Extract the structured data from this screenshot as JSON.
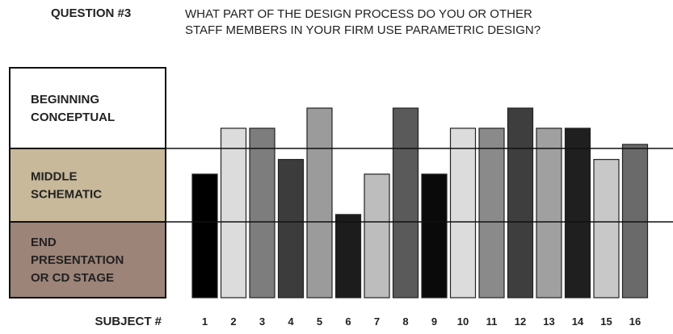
{
  "question": {
    "label": "QUESTION #3",
    "text": "WHAT PART OF THE DESIGN PROCESS DO YOU OR OTHER\nSTAFF MEMBERS IN YOUR FIRM USE PARAMETRIC DESIGN?"
  },
  "chart_data": {
    "type": "bar",
    "xlabel": "SUBJECT #",
    "categories": [
      "1",
      "2",
      "3",
      "4",
      "5",
      "6",
      "7",
      "8",
      "9",
      "10",
      "11",
      "12",
      "13",
      "14",
      "15",
      "16"
    ],
    "values": [
      1.65,
      2.25,
      2.25,
      1.85,
      2.5,
      1.1,
      1.65,
      2.5,
      1.65,
      2.25,
      2.25,
      2.5,
      2.25,
      2.25,
      1.85,
      2.05
    ],
    "bar_colors": [
      "#000000",
      "#dcdcdc",
      "#7d7d7d",
      "#3c3c3c",
      "#9b9b9b",
      "#1c1c1c",
      "#bdbdbd",
      "#5a5a5a",
      "#0a0a0a",
      "#dcdcdc",
      "#8a8a8a",
      "#3e3e3e",
      "#a0a0a0",
      "#1f1f1f",
      "#c8c8c8",
      "#6a6a6a"
    ],
    "ylim": [
      0,
      3
    ],
    "stages": [
      {
        "lines": [
          "END",
          "PRESENTATION",
          "OR CD STAGE"
        ],
        "color": "#9c8478"
      },
      {
        "lines": [
          "MIDDLE",
          "SCHEMATIC"
        ],
        "color": "#c8b99a"
      },
      {
        "lines": [
          "BEGINNING",
          "CONCEPTUAL"
        ],
        "color": "#ffffff"
      }
    ]
  }
}
